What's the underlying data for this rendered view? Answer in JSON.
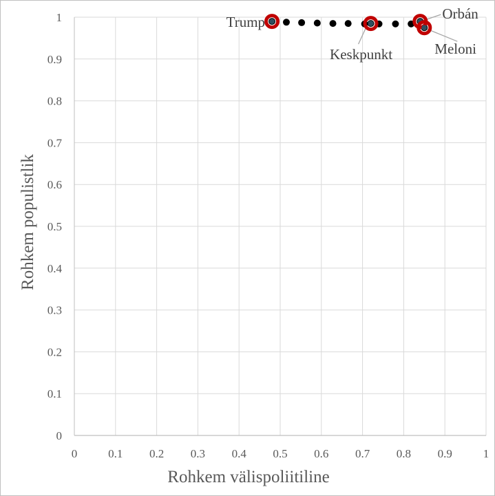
{
  "chart_data": {
    "type": "scatter",
    "xlabel": "Rohkem välispoliitiline",
    "ylabel": "Rohkem populistlik",
    "xlim": [
      0,
      1
    ],
    "ylim": [
      0,
      1
    ],
    "x_ticks": [
      "0",
      "0.1",
      "0.2",
      "0.3",
      "0.4",
      "0.5",
      "0.6",
      "0.7",
      "0.8",
      "0.9",
      "1"
    ],
    "y_ticks": [
      "0",
      "0.1",
      "0.2",
      "0.3",
      "0.4",
      "0.5",
      "0.6",
      "0.7",
      "0.8",
      "0.9",
      "1"
    ],
    "grid": true,
    "series": [
      {
        "points": [
          {
            "x": 0.48,
            "y": 0.99
          },
          {
            "x": 0.515,
            "y": 0.988
          },
          {
            "x": 0.552,
            "y": 0.987
          },
          {
            "x": 0.59,
            "y": 0.986
          },
          {
            "x": 0.628,
            "y": 0.985
          },
          {
            "x": 0.665,
            "y": 0.985
          },
          {
            "x": 0.705,
            "y": 0.984
          },
          {
            "x": 0.72,
            "y": 0.985
          },
          {
            "x": 0.74,
            "y": 0.984
          },
          {
            "x": 0.78,
            "y": 0.984
          },
          {
            "x": 0.818,
            "y": 0.984
          },
          {
            "x": 0.84,
            "y": 0.99
          },
          {
            "x": 0.85,
            "y": 0.975
          }
        ],
        "color": "#000000"
      }
    ],
    "highlighted": [
      {
        "label": "Trump",
        "x": 0.48,
        "y": 0.99,
        "label_side": "left"
      },
      {
        "label": "Keskpunkt",
        "x": 0.72,
        "y": 0.985,
        "label_side": "bottom-left"
      },
      {
        "label": "Orbán",
        "x": 0.84,
        "y": 0.99,
        "label_side": "top-right"
      },
      {
        "label": "Meloni",
        "x": 0.85,
        "y": 0.975,
        "label_side": "bottom-right"
      }
    ],
    "colors": {
      "highlight_ring": "#c00000",
      "highlight_center": "#2f4f5f",
      "grid": "#d9d9d9",
      "axis": "#bfbfbf",
      "text": "#595959",
      "leader": "#a6a6a6"
    }
  }
}
